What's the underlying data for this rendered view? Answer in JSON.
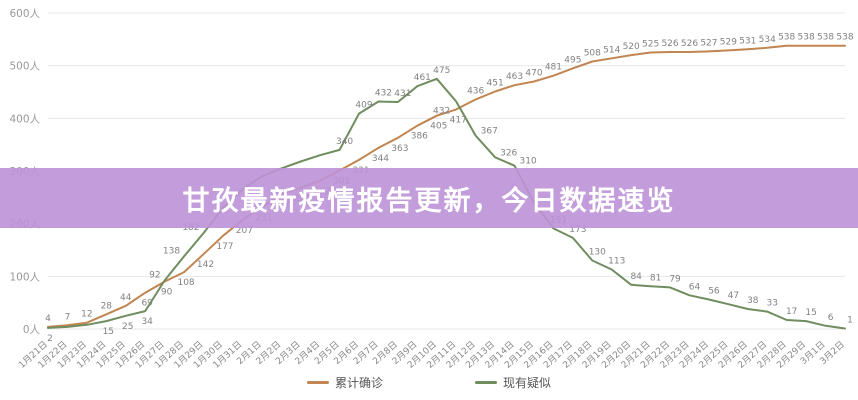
{
  "banner": {
    "title": "甘孜最新疫情报告更新，今日数据速览"
  },
  "axes": {
    "y_unit": "人",
    "y_ticks": [
      "0人",
      "100人",
      "200人",
      "300人",
      "400人",
      "500人",
      "600人"
    ]
  },
  "chart_data": {
    "type": "line",
    "title": "甘孜最新疫情报告更新，今日数据速览",
    "xlabel": "",
    "ylabel": "",
    "ylim": [
      0,
      600
    ],
    "grid": true,
    "legend_position": "bottom",
    "categories": [
      "1月21日",
      "1月22日",
      "1月23日",
      "1月24日",
      "1月25日",
      "1月26日",
      "1月27日",
      "1月28日",
      "1月29日",
      "1月30日",
      "1月31日",
      "2月1日",
      "2月2日",
      "2月3日",
      "2月4日",
      "2月5日",
      "2月6日",
      "2月7日",
      "2月8日",
      "2月9日",
      "2月10日",
      "2月11日",
      "2月12日",
      "2月13日",
      "2月14日",
      "2月15日",
      "2月16日",
      "2月17日",
      "2月18日",
      "2月19日",
      "2月20日",
      "2月21日",
      "2月22日",
      "2月23日",
      "2月24日",
      "2月25日",
      "2月26日",
      "2月27日",
      "2月28日",
      "2月29日",
      "3月1日",
      "3月2日"
    ],
    "series": [
      {
        "name": "累计确诊",
        "color": "#c08550",
        "values": [
          4,
          7,
          12,
          28,
          44,
          69,
          90,
          108,
          142,
          177,
          207,
          231,
          256,
          268,
          282,
          301,
          321,
          344,
          363,
          386,
          405,
          417,
          436,
          451,
          463,
          470,
          481,
          495,
          508,
          514,
          520,
          525,
          526,
          526,
          527,
          529,
          531,
          534,
          538,
          538,
          538,
          538
        ],
        "labels": [
          "4",
          "7",
          "12",
          "28",
          "44",
          "69",
          "90",
          "108",
          "142",
          "177",
          "207",
          "231",
          "256",
          "268",
          "282",
          "301",
          "321",
          "344",
          "363",
          "386",
          "405",
          "417",
          "436",
          "451",
          "463",
          "470",
          "481",
          "495",
          "508",
          "514",
          "520",
          "525",
          "526",
          "526",
          "527",
          "529",
          "531",
          "534",
          "538",
          "538",
          "538",
          "538"
        ]
      },
      {
        "name": "现有疑似",
        "color": "#708d60",
        "values": [
          2,
          4,
          8,
          15,
          25,
          34,
          92,
          138,
          182,
          230,
          265,
          290,
          305,
          318,
          330,
          340,
          409,
          432,
          431,
          461,
          475,
          432,
          367,
          326,
          310,
          240,
          191,
          173,
          130,
          113,
          84,
          81,
          79,
          64,
          56,
          47,
          38,
          33,
          17,
          15,
          6,
          1
        ],
        "labels": [
          "2",
          "",
          "",
          "15",
          "25",
          "34",
          "92",
          "138",
          "182",
          "",
          "",
          "",
          "",
          "",
          "",
          "340",
          "409",
          "432",
          "431",
          "461",
          "475",
          "432",
          "367",
          "326",
          "310",
          "",
          "191",
          "173",
          "130",
          "113",
          "84",
          "81",
          "79",
          "64",
          "56",
          "47",
          "38",
          "33",
          "17",
          "15",
          "6",
          "1"
        ]
      }
    ]
  },
  "legend": {
    "items": [
      {
        "label": "累计确诊",
        "color": "#c08550"
      },
      {
        "label": "现有疑似",
        "color": "#708d60"
      }
    ]
  }
}
